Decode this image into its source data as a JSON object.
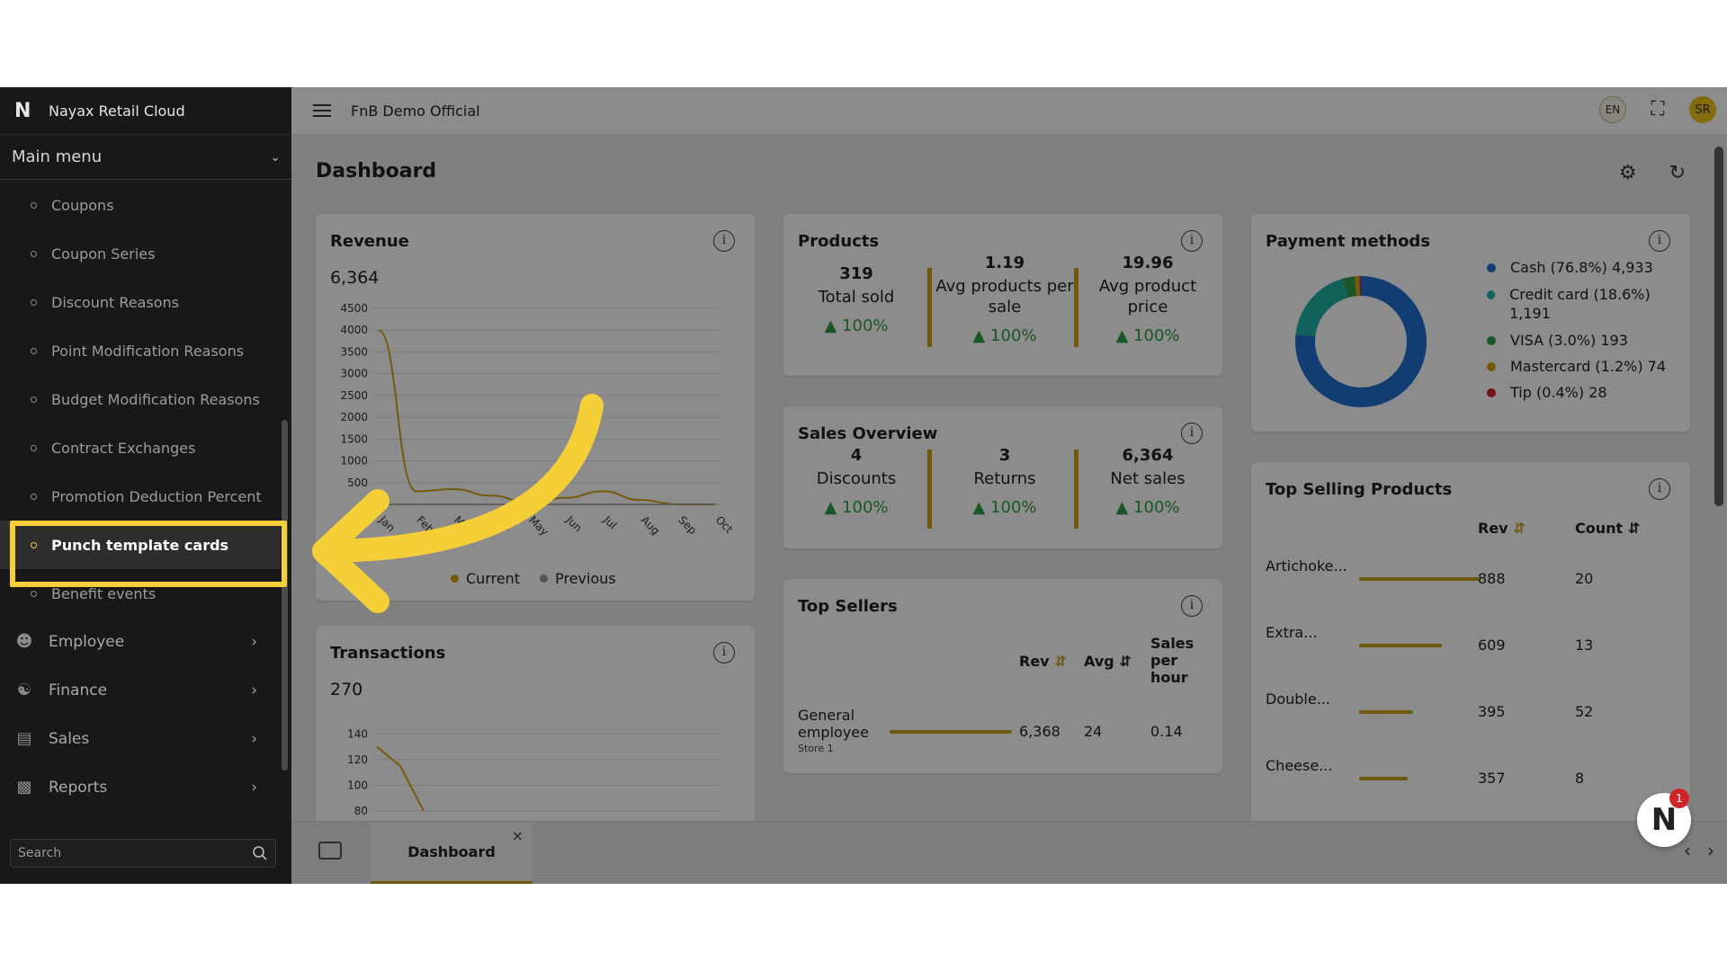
{
  "app": {
    "logo": "N",
    "name": "Nayax Retail Cloud",
    "org": "FnB Demo Official",
    "lang": "EN",
    "user_initials": "SR"
  },
  "sidebar": {
    "main_menu_label": "Main menu",
    "items": [
      {
        "label": "Coupons"
      },
      {
        "label": "Coupon Series"
      },
      {
        "label": "Discount Reasons"
      },
      {
        "label": "Point Modification Reasons"
      },
      {
        "label": "Budget Modification Reasons"
      },
      {
        "label": "Contract Exchanges"
      },
      {
        "label": "Promotion Deduction Percent"
      },
      {
        "label": "Punch template cards",
        "active": true
      },
      {
        "label": "Benefit events"
      }
    ],
    "groups": [
      {
        "label": "Employee",
        "icon": "person-icon"
      },
      {
        "label": "Finance",
        "icon": "hand-coin-icon"
      },
      {
        "label": "Sales",
        "icon": "receipt-icon"
      },
      {
        "label": "Reports",
        "icon": "bar-chart-icon"
      }
    ],
    "search_placeholder": "Search"
  },
  "page": {
    "title": "Dashboard"
  },
  "revenue": {
    "title": "Revenue",
    "total": "6,364",
    "legend_current": "Current",
    "legend_previous": "Previous"
  },
  "transactions": {
    "title": "Transactions",
    "total": "270"
  },
  "products": {
    "title": "Products",
    "stats": [
      {
        "value": "319",
        "label": "Total sold",
        "pct": "100%"
      },
      {
        "value": "1.19",
        "label": "Avg products per sale",
        "pct": "100%"
      },
      {
        "value": "19.96",
        "label": "Avg product price",
        "pct": "100%"
      }
    ]
  },
  "sales_overview": {
    "title": "Sales Overview",
    "stats": [
      {
        "value": "4",
        "label": "Discounts",
        "pct": "100%"
      },
      {
        "value": "3",
        "label": "Returns",
        "pct": "100%"
      },
      {
        "value": "6,364",
        "label": "Net sales",
        "pct": "100%"
      }
    ]
  },
  "top_sellers": {
    "title": "Top Sellers",
    "headers": {
      "rev": "Rev",
      "avg": "Avg",
      "sph": "Sales per hour"
    },
    "rows": [
      {
        "name": "General employee",
        "store": "Store 1",
        "rev": "6,368",
        "avg": "24",
        "sph": "0.14",
        "bar_fraction": 1.0
      }
    ]
  },
  "payment_methods": {
    "title": "Payment methods",
    "entries": [
      {
        "label": "Cash (76.8%) 4,933",
        "color": "#1f6fd1",
        "percent": 76.8
      },
      {
        "label": "Credit card (18.6%) 1,191",
        "color": "#20b3a4",
        "percent": 18.6
      },
      {
        "label": "VISA (3.0%) 193",
        "color": "#2e9e46",
        "percent": 3.0
      },
      {
        "label": "Mastercard (1.2%) 74",
        "color": "#d6a419",
        "percent": 1.2
      },
      {
        "label": "Tip (0.4%) 28",
        "color": "#d0242b",
        "percent": 0.4
      }
    ]
  },
  "top_selling": {
    "title": "Top Selling Products",
    "headers": {
      "rev": "Rev",
      "count": "Count"
    },
    "rows": [
      {
        "name": "Artichoke...",
        "rev": "888",
        "count": "20",
        "bar_fraction": 1.0
      },
      {
        "name": "Extra...",
        "rev": "609",
        "count": "13",
        "bar_fraction": 0.686
      },
      {
        "name": "Double...",
        "rev": "395",
        "count": "52",
        "bar_fraction": 0.445
      },
      {
        "name": "Cheese...",
        "rev": "357",
        "count": "8",
        "bar_fraction": 0.402
      }
    ]
  },
  "tabs": [
    {
      "label": "Dashboard",
      "close": "×"
    }
  ],
  "notification_count": "1",
  "colors": {
    "accent": "#c9a21c",
    "highlight": "#f5cf37",
    "positive": "#2e9e46"
  },
  "chart_data": [
    {
      "type": "line",
      "title": "Revenue",
      "x": [
        "Jan",
        "Feb",
        "Mar",
        "Apr",
        "May",
        "Jun",
        "Jul",
        "Aug",
        "Sep",
        "Oct"
      ],
      "series": [
        {
          "name": "Current",
          "values": [
            4000,
            300,
            350,
            200,
            50,
            150,
            300,
            100,
            0,
            0
          ]
        },
        {
          "name": "Previous",
          "values": [
            0,
            0,
            0,
            0,
            0,
            0,
            0,
            0,
            0,
            0
          ]
        }
      ],
      "yticks": [
        500,
        1000,
        1500,
        2000,
        2500,
        3000,
        3500,
        4000,
        4500
      ],
      "ylim": [
        0,
        4500
      ],
      "grid": true,
      "legend": "bottom"
    },
    {
      "type": "line",
      "title": "Transactions",
      "yticks": [
        80,
        100,
        120,
        140
      ],
      "ylim": [
        0,
        150
      ],
      "series": [
        {
          "name": "Current",
          "values": [
            130,
            115,
            80
          ]
        }
      ]
    }
  ]
}
